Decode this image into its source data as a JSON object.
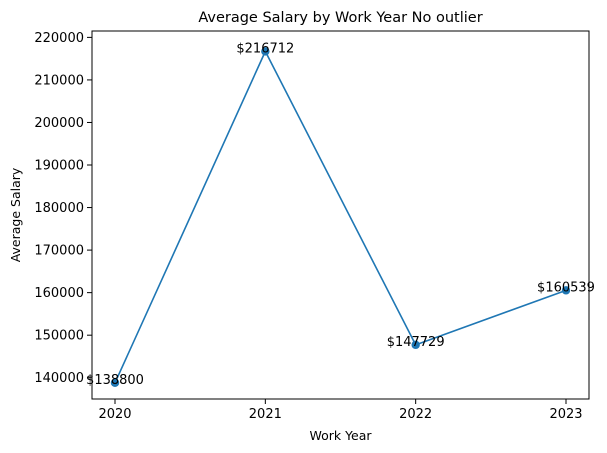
{
  "chart_data": {
    "type": "line",
    "title": "Average Salary by Work Year No outlier",
    "xlabel": "Work Year",
    "ylabel": "Average Salary",
    "categories": [
      "2020",
      "2021",
      "2022",
      "2023"
    ],
    "series": [
      {
        "values": [
          138800,
          216712,
          147729,
          160539
        ],
        "color": "#1f77b4",
        "marker": "circle"
      }
    ],
    "data_labels": [
      "$138800",
      "$216712",
      "$147729",
      "$160539"
    ],
    "ylim": [
      135000,
      221500
    ],
    "yticks": [
      140000,
      150000,
      160000,
      170000,
      180000,
      190000,
      200000,
      210000,
      220000
    ],
    "grid": false,
    "legend": "none"
  }
}
